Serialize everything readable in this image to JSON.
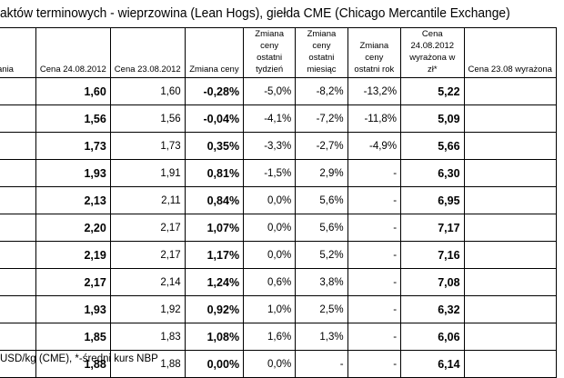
{
  "title": "aktów terminowych - wieprzowina (Lean Hogs), giełda CME (Chicago Mercantile Exchange)",
  "headers": [
    "ania",
    "Cena 24.08.2012",
    "Cena 23.08.2012",
    "Zmiana ceny",
    "Zmiana ceny ostatni tydzień",
    "Zmiana ceny ostatni miesiąc",
    "Zmiana ceny ostatni rok",
    "Cena 24.08.2012 wyrażona w zł*",
    "Cena 23.08 wyrażona"
  ],
  "rows": [
    [
      "",
      "1,60",
      "1,60",
      "-0,28%",
      "-5,0%",
      "-8,2%",
      "-13,2%",
      "5,22",
      ""
    ],
    [
      "",
      "1,56",
      "1,56",
      "-0,04%",
      "-4,1%",
      "-7,2%",
      "-11,8%",
      "5,09",
      ""
    ],
    [
      "",
      "1,73",
      "1,73",
      "0,35%",
      "-3,3%",
      "-2,7%",
      "-4,9%",
      "5,66",
      ""
    ],
    [
      "",
      "1,93",
      "1,91",
      "0,81%",
      "-1,5%",
      "2,9%",
      "-",
      "6,30",
      ""
    ],
    [
      "",
      "2,13",
      "2,11",
      "0,84%",
      "0,0%",
      "5,6%",
      "-",
      "6,95",
      ""
    ],
    [
      "",
      "2,20",
      "2,17",
      "1,07%",
      "0,0%",
      "5,6%",
      "-",
      "7,17",
      ""
    ],
    [
      "",
      "2,19",
      "2,17",
      "1,17%",
      "0,0%",
      "5,2%",
      "-",
      "7,16",
      ""
    ],
    [
      "",
      "2,17",
      "2,14",
      "1,24%",
      "0,6%",
      "3,8%",
      "-",
      "7,08",
      ""
    ],
    [
      "",
      "1,93",
      "1,92",
      "0,92%",
      "1,0%",
      "2,5%",
      "-",
      "6,32",
      ""
    ],
    [
      "",
      "1,85",
      "1,83",
      "1,08%",
      "1,6%",
      "1,3%",
      "-",
      "6,06",
      ""
    ],
    [
      "",
      "1,88",
      "1,88",
      "0,00%",
      "0,0%",
      "-",
      "-",
      "6,14",
      ""
    ]
  ],
  "footer": "USD/kg (CME), *-średni kurs NBP"
}
